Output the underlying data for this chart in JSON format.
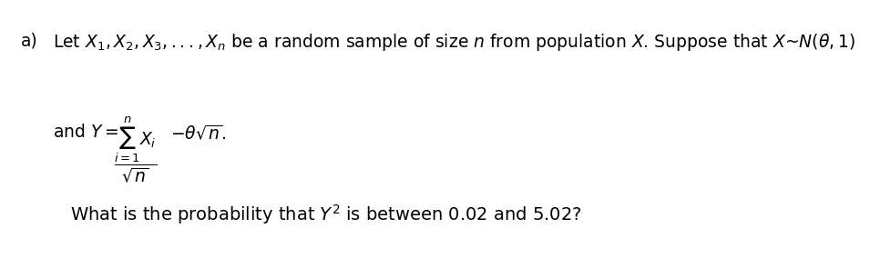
{
  "bg_color": "#ffffff",
  "label_a": "a)",
  "line1": "Let $X_1, X_2, X_3, ..., X_n$ be a random sample of size $n$ from population $X$. Suppose that $X$~$N(\\theta, 1)$",
  "line2_prefix": "and $Y = $",
  "line2_fraction_num": "$\\sum_{i=1}^{n} X_i$",
  "line2_fraction_den": "$\\sqrt{n}$",
  "line2_suffix": "$ - \\theta\\sqrt{n}.$",
  "line3": "What is the probability that $Y^2$ is between 0.02 and 5.02?",
  "font_size_main": 13.5,
  "font_size_bottom": 14,
  "text_color": "#000000"
}
